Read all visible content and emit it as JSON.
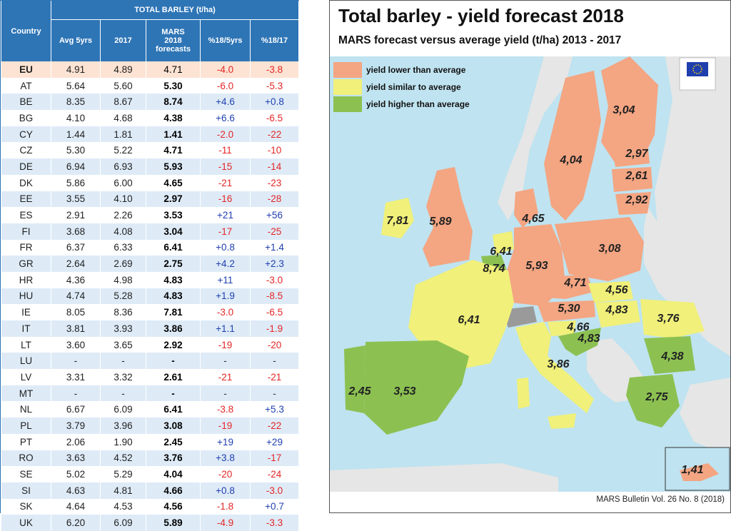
{
  "table": {
    "group_header": "TOTAL BARLEY (t/ha)",
    "columns": [
      "Country",
      "Avg 5yrs",
      "2017",
      "MARS 2018 forecasts",
      "%18/5yrs",
      "%18/17"
    ],
    "rows": [
      {
        "country": "EU",
        "avg": "4.91",
        "y2017": "4.89",
        "fc": "4.71",
        "p5": "-4.0",
        "p17": "-3.8"
      },
      {
        "country": "AT",
        "avg": "5.64",
        "y2017": "5.60",
        "fc": "5.30",
        "p5": "-6.0",
        "p17": "-5.3"
      },
      {
        "country": "BE",
        "avg": "8.35",
        "y2017": "8.67",
        "fc": "8.74",
        "p5": "+4.6",
        "p17": "+0.8"
      },
      {
        "country": "BG",
        "avg": "4.10",
        "y2017": "4.68",
        "fc": "4.38",
        "p5": "+6.6",
        "p17": "-6.5"
      },
      {
        "country": "CY",
        "avg": "1.44",
        "y2017": "1.81",
        "fc": "1.41",
        "p5": "-2.0",
        "p17": "-22"
      },
      {
        "country": "CZ",
        "avg": "5.30",
        "y2017": "5.22",
        "fc": "4.71",
        "p5": "-11",
        "p17": "-10"
      },
      {
        "country": "DE",
        "avg": "6.94",
        "y2017": "6.93",
        "fc": "5.93",
        "p5": "-15",
        "p17": "-14"
      },
      {
        "country": "DK",
        "avg": "5.86",
        "y2017": "6.00",
        "fc": "4.65",
        "p5": "-21",
        "p17": "-23"
      },
      {
        "country": "EE",
        "avg": "3.55",
        "y2017": "4.10",
        "fc": "2.97",
        "p5": "-16",
        "p17": "-28"
      },
      {
        "country": "ES",
        "avg": "2.91",
        "y2017": "2.26",
        "fc": "3.53",
        "p5": "+21",
        "p17": "+56"
      },
      {
        "country": "FI",
        "avg": "3.68",
        "y2017": "4.08",
        "fc": "3.04",
        "p5": "-17",
        "p17": "-25"
      },
      {
        "country": "FR",
        "avg": "6.37",
        "y2017": "6.33",
        "fc": "6.41",
        "p5": "+0.8",
        "p17": "+1.4"
      },
      {
        "country": "GR",
        "avg": "2.64",
        "y2017": "2.69",
        "fc": "2.75",
        "p5": "+4.2",
        "p17": "+2.3"
      },
      {
        "country": "HR",
        "avg": "4.36",
        "y2017": "4.98",
        "fc": "4.83",
        "p5": "+11",
        "p17": "-3.0"
      },
      {
        "country": "HU",
        "avg": "4.74",
        "y2017": "5.28",
        "fc": "4.83",
        "p5": "+1.9",
        "p17": "-8.5"
      },
      {
        "country": "IE",
        "avg": "8.05",
        "y2017": "8.36",
        "fc": "7.81",
        "p5": "-3.0",
        "p17": "-6.5"
      },
      {
        "country": "IT",
        "avg": "3.81",
        "y2017": "3.93",
        "fc": "3.86",
        "p5": "+1.1",
        "p17": "-1.9"
      },
      {
        "country": "LT",
        "avg": "3.60",
        "y2017": "3.65",
        "fc": "2.92",
        "p5": "-19",
        "p17": "-20"
      },
      {
        "country": "LU",
        "avg": "-",
        "y2017": "-",
        "fc": "-",
        "p5": "-",
        "p17": "-"
      },
      {
        "country": "LV",
        "avg": "3.31",
        "y2017": "3.32",
        "fc": "2.61",
        "p5": "-21",
        "p17": "-21"
      },
      {
        "country": "MT",
        "avg": "-",
        "y2017": "-",
        "fc": "-",
        "p5": "-",
        "p17": "-"
      },
      {
        "country": "NL",
        "avg": "6.67",
        "y2017": "6.09",
        "fc": "6.41",
        "p5": "-3.8",
        "p17": "+5.3"
      },
      {
        "country": "PL",
        "avg": "3.79",
        "y2017": "3.96",
        "fc": "3.08",
        "p5": "-19",
        "p17": "-22"
      },
      {
        "country": "PT",
        "avg": "2.06",
        "y2017": "1.90",
        "fc": "2.45",
        "p5": "+19",
        "p17": "+29"
      },
      {
        "country": "RO",
        "avg": "3.63",
        "y2017": "4.52",
        "fc": "3.76",
        "p5": "+3.8",
        "p17": "-17"
      },
      {
        "country": "SE",
        "avg": "5.02",
        "y2017": "5.29",
        "fc": "4.04",
        "p5": "-20",
        "p17": "-24"
      },
      {
        "country": "SI",
        "avg": "4.63",
        "y2017": "4.81",
        "fc": "4.66",
        "p5": "+0.8",
        "p17": "-3.0"
      },
      {
        "country": "SK",
        "avg": "4.64",
        "y2017": "4.53",
        "fc": "4.56",
        "p5": "-1.8",
        "p17": "+0.7"
      },
      {
        "country": "UK",
        "avg": "6.20",
        "y2017": "6.09",
        "fc": "5.89",
        "p5": "-4.9",
        "p17": "-3.3"
      }
    ]
  },
  "map": {
    "title": "Total barley - yield forecast 2018",
    "subtitle": "MARS forecast versus average yield (t/ha) 2013 - 2017",
    "footer": "MARS Bulletin Vol. 26 No. 8 (2018)",
    "legend": [
      {
        "label": "yield lower than average",
        "color": "#f4a582"
      },
      {
        "label": "yield similar to average",
        "color": "#f0f07a"
      },
      {
        "label": "yield higher than average",
        "color": "#8cc152"
      }
    ],
    "colors": {
      "sea": "#bfe3f0",
      "non_eu": "#e6e6e6",
      "lower": "#f4a582",
      "similar": "#f0f07a",
      "higher": "#8cc152",
      "gray": "#9a9a9a"
    },
    "labels": {
      "FI": "3,04",
      "SE": "4,04",
      "EE": "2,97",
      "LV": "2,61",
      "LT": "2,92",
      "DK": "4,65",
      "IE": "7,81",
      "UK": "5,89",
      "NL": "6,41",
      "BE": "8,74",
      "DE": "5,93",
      "PL": "3,08",
      "CZ": "4,71",
      "SK": "4,56",
      "AT": "5,30",
      "HU": "4,83",
      "SI": "4,66",
      "HR": "4,83",
      "RO": "3,76",
      "FR": "6,41",
      "IT": "3,86",
      "BG": "4,38",
      "PT": "2,45",
      "ES": "3,53",
      "GR": "2,75",
      "CY": "1,41"
    }
  }
}
